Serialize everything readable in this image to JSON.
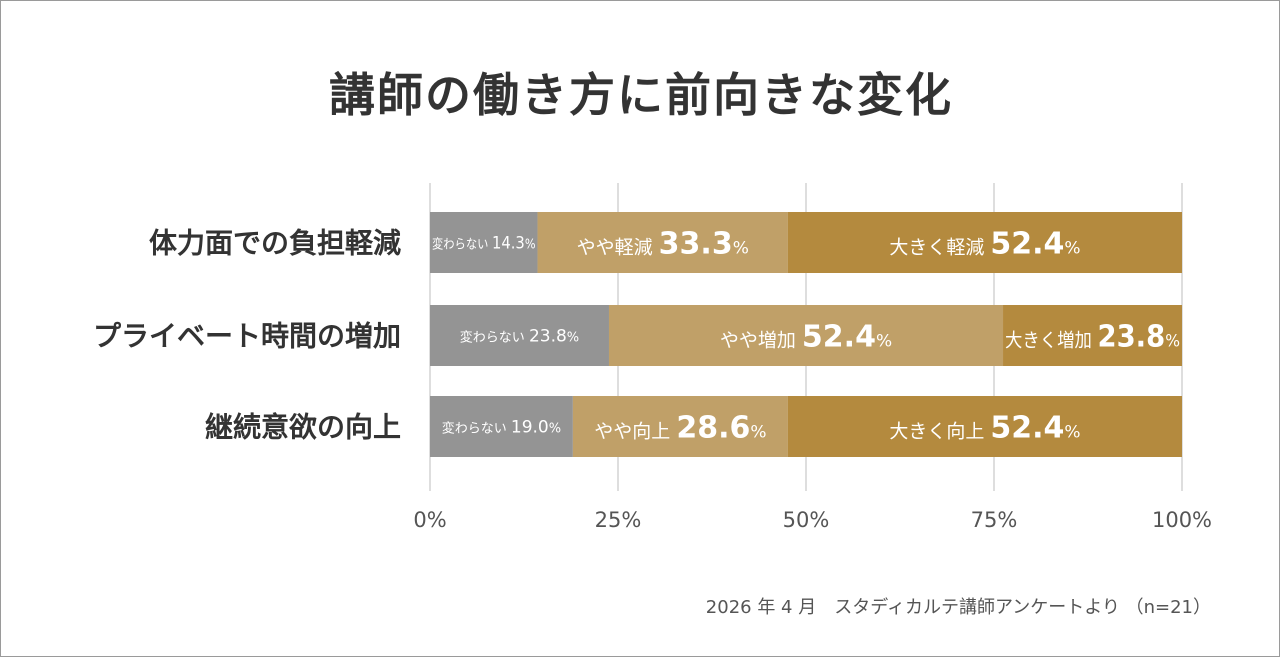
{
  "colors": {
    "unchanged": "#949494",
    "slightly": "#c0a068",
    "greatly": "#b48a3e",
    "grid": "#c8c8c8",
    "text": "#333333",
    "bar_text": "#ffffff"
  },
  "chart_data": {
    "type": "bar",
    "orientation": "horizontal",
    "stacked": true,
    "title": "講師の働き方に前向きな変化",
    "source": "2026 年 4 月　スタディカルテ講師アンケートより （n=21）",
    "categories": [
      "体力面での負担軽減",
      "プライベート時間の増加",
      "継続意欲の向上"
    ],
    "xlim": [
      0,
      100
    ],
    "x_ticks": [
      0,
      25,
      50,
      75,
      100
    ],
    "x_tick_labels": [
      "0%",
      "25%",
      "50%",
      "75%",
      "100%"
    ],
    "grid": true,
    "unit": "%",
    "series": [
      {
        "key": "unchanged",
        "values": [
          14.3,
          23.8,
          19.0
        ],
        "labels": [
          "変わらない",
          "変わらない",
          "変わらない"
        ]
      },
      {
        "key": "slightly",
        "values": [
          33.3,
          52.4,
          28.6
        ],
        "labels": [
          "やや軽減",
          "やや増加",
          "やや向上"
        ]
      },
      {
        "key": "greatly",
        "values": [
          52.4,
          23.8,
          52.4
        ],
        "labels": [
          "大きく軽減",
          "大きく増加",
          "大きく向上"
        ]
      }
    ]
  }
}
